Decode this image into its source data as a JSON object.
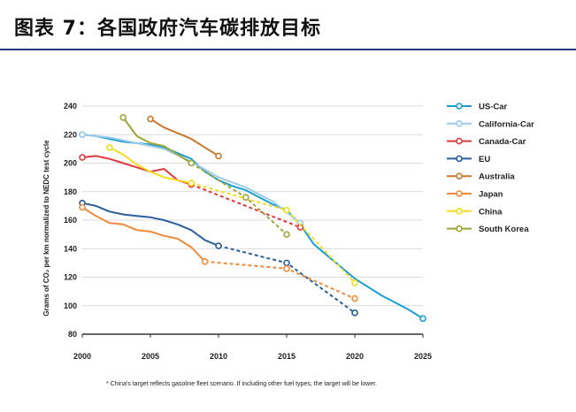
{
  "header": {
    "title": "图表 7：各国政府汽车碳排放目标"
  },
  "chart_data": {
    "type": "line",
    "ylabel": "Grams of CO₂ per km normalized to NEDC test cycle",
    "xlim": [
      2000,
      2025
    ],
    "ylim": [
      80,
      240
    ],
    "xticks": [
      2000,
      2005,
      2010,
      2015,
      2020,
      2025
    ],
    "yticks": [
      80,
      100,
      120,
      140,
      160,
      180,
      200,
      220,
      240
    ],
    "grid": "horizontal",
    "legend_position": "right",
    "footnote": "* China's target reflects gasoline fleet scenario. If including other fuel types, the target will be lower.",
    "series": [
      {
        "name": "US-Car",
        "color": "#1a9ed6",
        "actual": [
          [
            2000,
            220
          ],
          [
            2001,
            219
          ],
          [
            2002,
            217
          ],
          [
            2003,
            215
          ],
          [
            2004,
            214
          ],
          [
            2005,
            213
          ],
          [
            2006,
            211
          ],
          [
            2007,
            207
          ],
          [
            2008,
            203
          ],
          [
            2009,
            194
          ],
          [
            2010,
            188
          ],
          [
            2011,
            184
          ],
          [
            2012,
            181
          ],
          [
            2013,
            176
          ],
          [
            2014,
            171
          ],
          [
            2015,
            167
          ],
          [
            2016,
            157
          ],
          [
            2017,
            143
          ],
          [
            2018,
            135
          ],
          [
            2019,
            127
          ],
          [
            2020,
            119
          ],
          [
            2021,
            113
          ],
          [
            2022,
            107
          ],
          [
            2023,
            102
          ],
          [
            2024,
            97
          ],
          [
            2025,
            91
          ]
        ],
        "target": []
      },
      {
        "name": "California-Car",
        "color": "#9ccbea",
        "actual": [
          [
            2000,
            220
          ],
          [
            2002,
            218
          ],
          [
            2004,
            214
          ],
          [
            2006,
            210
          ],
          [
            2008,
            201
          ],
          [
            2010,
            190
          ],
          [
            2012,
            183
          ],
          [
            2014,
            173
          ],
          [
            2016,
            158
          ]
        ],
        "target": []
      },
      {
        "name": "Canada-Car",
        "color": "#e03a3e",
        "actual": [
          [
            2000,
            204
          ],
          [
            2001,
            205
          ],
          [
            2002,
            203
          ],
          [
            2003,
            200
          ],
          [
            2004,
            197
          ],
          [
            2005,
            194
          ],
          [
            2006,
            196
          ],
          [
            2007,
            188
          ],
          [
            2008,
            185
          ]
        ],
        "target": [
          [
            2008,
            185
          ],
          [
            2016,
            155
          ]
        ]
      },
      {
        "name": "EU",
        "color": "#27609c",
        "actual": [
          [
            2000,
            172
          ],
          [
            2001,
            170
          ],
          [
            2002,
            166
          ],
          [
            2003,
            164
          ],
          [
            2004,
            163
          ],
          [
            2005,
            162
          ],
          [
            2006,
            160
          ],
          [
            2007,
            157
          ],
          [
            2008,
            153
          ],
          [
            2009,
            146
          ],
          [
            2010,
            142
          ]
        ],
        "target": [
          [
            2010,
            142
          ],
          [
            2015,
            130
          ],
          [
            2020,
            95
          ]
        ]
      },
      {
        "name": "Australia",
        "color": "#c8772c",
        "actual": [
          [
            2005,
            231
          ],
          [
            2006,
            225
          ],
          [
            2007,
            221
          ],
          [
            2008,
            217
          ],
          [
            2009,
            211
          ],
          [
            2010,
            205
          ]
        ],
        "target": []
      },
      {
        "name": "Japan",
        "color": "#f08a3c",
        "actual": [
          [
            2000,
            169
          ],
          [
            2001,
            163
          ],
          [
            2002,
            158
          ],
          [
            2003,
            157
          ],
          [
            2004,
            153
          ],
          [
            2005,
            152
          ],
          [
            2006,
            149
          ],
          [
            2007,
            147
          ],
          [
            2008,
            141
          ],
          [
            2009,
            131
          ]
        ],
        "target": [
          [
            2009,
            131
          ],
          [
            2015,
            126
          ],
          [
            2020,
            105
          ]
        ]
      },
      {
        "name": "China",
        "color": "#f5dd1e",
        "actual": [
          [
            2002,
            211
          ],
          [
            2003,
            206
          ],
          [
            2004,
            199
          ],
          [
            2005,
            194
          ],
          [
            2006,
            190
          ],
          [
            2007,
            188
          ],
          [
            2008,
            186
          ]
        ],
        "target": [
          [
            2008,
            186
          ],
          [
            2015,
            167
          ],
          [
            2020,
            116
          ]
        ]
      },
      {
        "name": "South Korea",
        "color": "#9fa535",
        "actual": [
          [
            2003,
            232
          ],
          [
            2004,
            219
          ],
          [
            2005,
            214
          ],
          [
            2006,
            212
          ],
          [
            2007,
            206
          ],
          [
            2008,
            200
          ]
        ],
        "target": [
          [
            2008,
            200
          ],
          [
            2012,
            176
          ],
          [
            2015,
            150
          ]
        ]
      }
    ]
  }
}
